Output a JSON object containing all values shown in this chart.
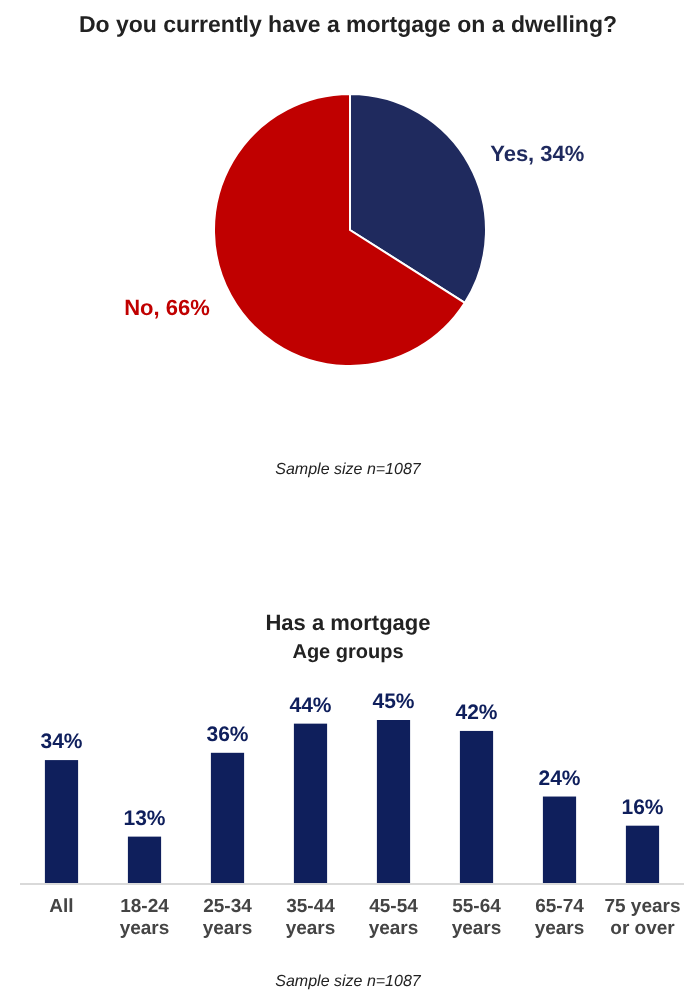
{
  "chart_data": [
    {
      "type": "pie",
      "title": "Do you currently have a mortgage on a dwelling?",
      "categories": [
        "Yes",
        "No"
      ],
      "values": [
        34,
        66
      ],
      "colors": [
        "#1f2a5e",
        "#c00000"
      ],
      "value_labels": [
        "34%",
        "66%"
      ],
      "annotations": [
        "Sample size n=1087"
      ]
    },
    {
      "type": "bar",
      "title": "Has a mortgage",
      "subtitle": "Age groups",
      "categories": [
        "All",
        "18-24 years",
        "25-34 years",
        "35-44 years",
        "45-54 years",
        "55-64 years",
        "65-74 years",
        "75 years or over"
      ],
      "values": [
        34,
        13,
        36,
        44,
        45,
        42,
        24,
        16
      ],
      "color": "#0f1f5c",
      "value_labels": [
        "34%",
        "13%",
        "36%",
        "44%",
        "45%",
        "42%",
        "24%",
        "16%"
      ],
      "annotations": [
        "Sample size n=1087"
      ]
    }
  ]
}
